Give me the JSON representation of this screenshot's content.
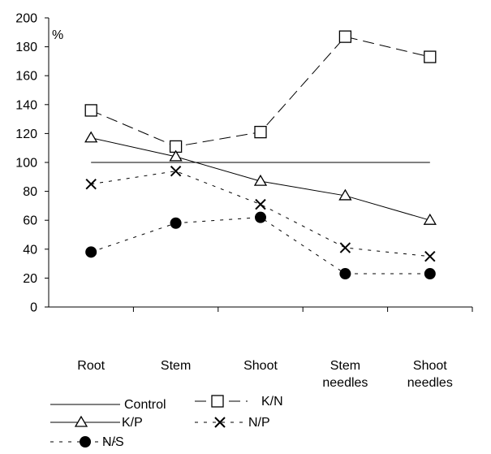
{
  "chart_data": {
    "type": "line",
    "title": "",
    "xlabel": "",
    "ylabel": "%",
    "ylim": [
      0,
      200
    ],
    "yticks": [
      0,
      20,
      40,
      60,
      80,
      100,
      120,
      140,
      160,
      180,
      200
    ],
    "categories": [
      [
        "Root"
      ],
      [
        "Stem"
      ],
      [
        "Shoot"
      ],
      [
        "Stem",
        "needles"
      ],
      [
        "Shoot",
        "needles"
      ]
    ],
    "series": [
      {
        "name": "Control",
        "style": "solid",
        "marker": "none",
        "values": [
          100,
          100,
          100,
          100,
          100
        ]
      },
      {
        "name": "K/N",
        "style": "long-dash",
        "marker": "open-square",
        "values": [
          136,
          111,
          121,
          187,
          173
        ]
      },
      {
        "name": "K/P",
        "style": "solid",
        "marker": "open-triangle",
        "values": [
          117,
          104,
          87,
          77,
          60
        ]
      },
      {
        "name": "N/P",
        "style": "short-dash",
        "marker": "cross",
        "values": [
          85,
          94,
          71,
          41,
          35
        ]
      },
      {
        "name": "N/S",
        "style": "short-dash",
        "marker": "filled-circle",
        "values": [
          38,
          58,
          62,
          23,
          23
        ]
      }
    ],
    "grid": false,
    "legend_position": "bottom-left"
  }
}
